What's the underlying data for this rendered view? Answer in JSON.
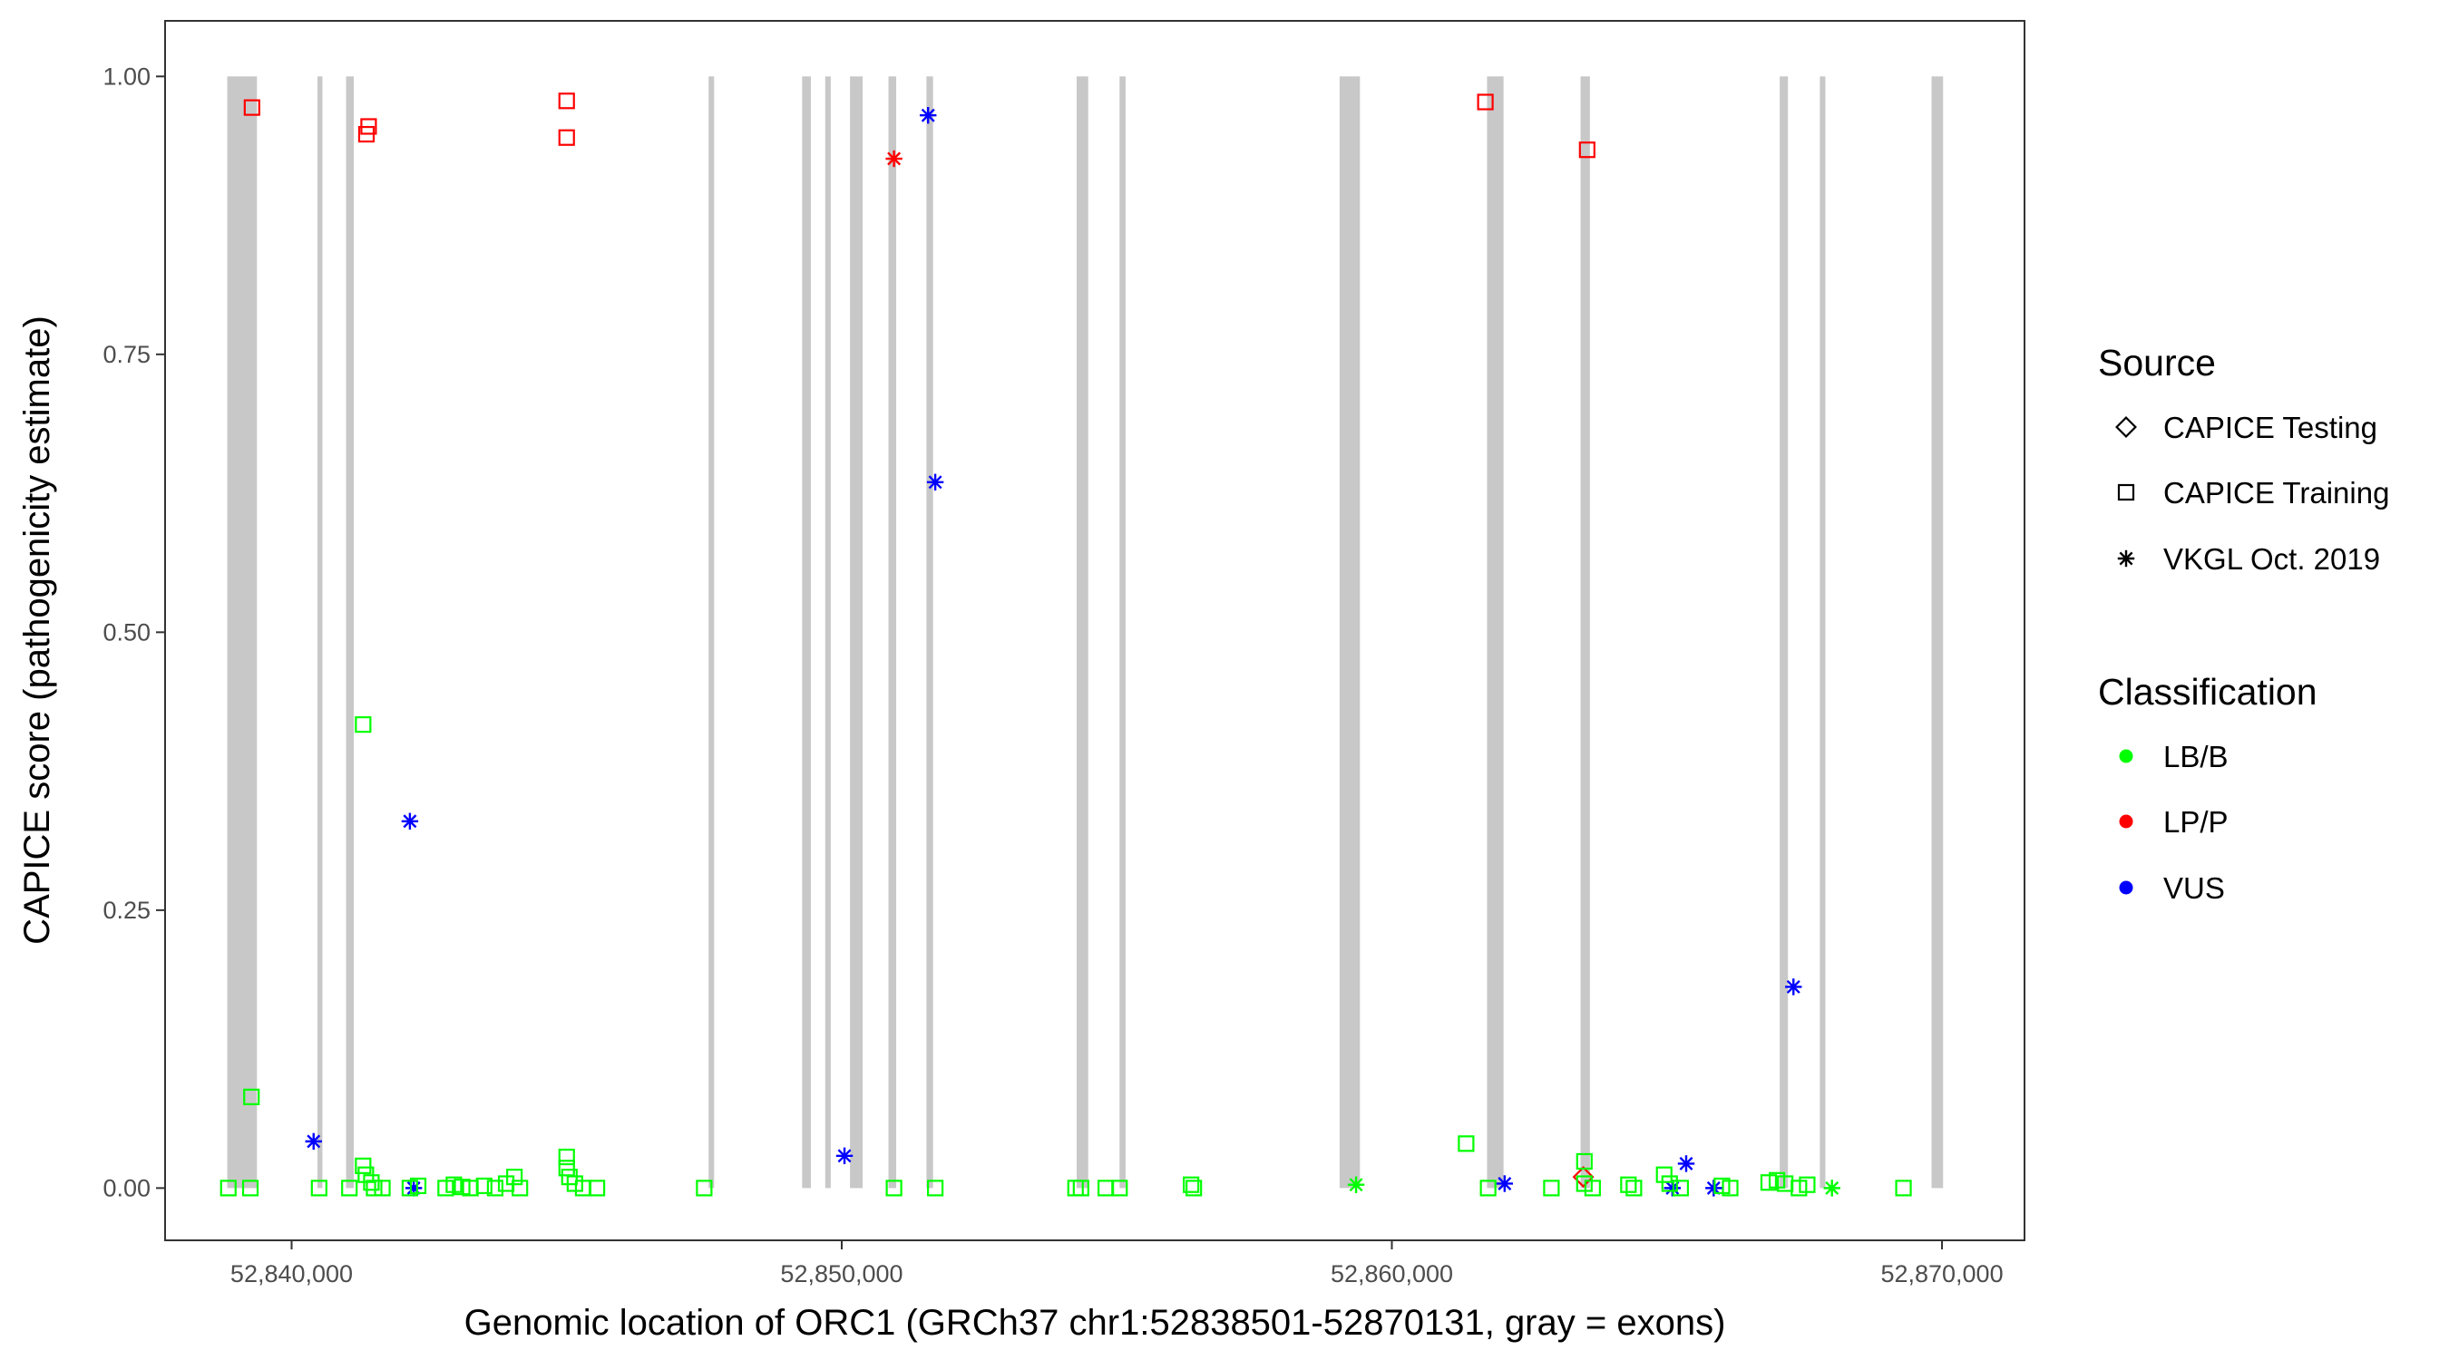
{
  "chart_data": {
    "type": "scatter",
    "title": "",
    "xlabel": "Genomic location of ORC1 (GRCh37 chr1:52838501-52870131, gray = exons)",
    "ylabel": "CAPICE score (pathogenicity estimate)",
    "xlim": [
      52837700,
      52871500
    ],
    "ylim": [
      -0.047,
      1.05
    ],
    "x_ticks": [
      52840000,
      52850000,
      52860000,
      52870000
    ],
    "x_tick_labels": [
      "52,840,000",
      "52,850,000",
      "52,860,000",
      "52,870,000"
    ],
    "y_ticks": [
      0,
      0.25,
      0.5,
      0.75,
      1.0
    ],
    "y_tick_labels": [
      "0.00",
      "0.25",
      "0.50",
      "0.75",
      "1.00"
    ],
    "grid": false,
    "legend_position": "right",
    "colors": {
      "LB/B": "#00ff00",
      "LP/P": "#ff0000",
      "VUS": "#0000ff",
      "exon": "#c8c8c8"
    },
    "exons": [
      [
        52838830,
        52839370
      ],
      [
        52840470,
        52840560
      ],
      [
        52840990,
        52841130
      ],
      [
        52847580,
        52847680
      ],
      [
        52849280,
        52849440
      ],
      [
        52849700,
        52849800
      ],
      [
        52850150,
        52850380
      ],
      [
        52850850,
        52850990
      ],
      [
        52851540,
        52851660
      ],
      [
        52854270,
        52854480
      ],
      [
        52855050,
        52855160
      ],
      [
        52859050,
        52859420
      ],
      [
        52861730,
        52862030
      ],
      [
        52863430,
        52863600
      ],
      [
        52867050,
        52867200
      ],
      [
        52867780,
        52867880
      ],
      [
        52869810,
        52870020
      ]
    ],
    "legends": {
      "source": {
        "title": "Source",
        "entries": [
          "CAPICE Testing",
          "CAPICE Training",
          "VKGL Oct. 2019"
        ]
      },
      "classification": {
        "title": "Classification",
        "entries": [
          "LB/B",
          "LP/P",
          "VUS"
        ]
      }
    },
    "series": [
      {
        "source": "CAPICE Training",
        "classification": "LP/P",
        "marker": "square",
        "points": [
          [
            52839280,
            0.972
          ],
          [
            52841360,
            0.948
          ],
          [
            52841400,
            0.955
          ],
          [
            52845000,
            0.978
          ],
          [
            52845000,
            0.945
          ],
          [
            52861700,
            0.977
          ],
          [
            52863550,
            0.934
          ]
        ]
      },
      {
        "source": "VKGL Oct. 2019",
        "classification": "LP/P",
        "marker": "asterisk",
        "points": [
          [
            52850950,
            0.926
          ]
        ]
      },
      {
        "source": "CAPICE Testing",
        "classification": "LP/P",
        "marker": "diamond",
        "points": [
          [
            52863480,
            0.01
          ]
        ]
      },
      {
        "source": "VKGL Oct. 2019",
        "classification": "VUS",
        "marker": "asterisk",
        "points": [
          [
            52851570,
            0.965
          ],
          [
            52851700,
            0.635
          ],
          [
            52842150,
            0.33
          ],
          [
            52840400,
            0.042
          ],
          [
            52850050,
            0.029
          ],
          [
            52867300,
            0.181
          ],
          [
            52842220,
            0.0
          ],
          [
            52862050,
            0.004
          ],
          [
            52865350,
            0.022
          ],
          [
            52865100,
            0.0
          ],
          [
            52865850,
            0.0
          ]
        ]
      },
      {
        "source": "VKGL Oct. 2019",
        "classification": "LB/B",
        "marker": "asterisk",
        "points": [
          [
            52859350,
            0.003
          ],
          [
            52868000,
            0.0
          ]
        ]
      },
      {
        "source": "CAPICE Training",
        "classification": "LB/B",
        "marker": "square",
        "points": [
          [
            52841300,
            0.417
          ],
          [
            52839270,
            0.082
          ],
          [
            52861350,
            0.04
          ],
          [
            52863500,
            0.024
          ],
          [
            52838850,
            0.0
          ],
          [
            52839250,
            0.0
          ],
          [
            52840500,
            0.0
          ],
          [
            52841050,
            0.0
          ],
          [
            52841300,
            0.02
          ],
          [
            52841350,
            0.012
          ],
          [
            52841450,
            0.005
          ],
          [
            52841500,
            0.0
          ],
          [
            52841650,
            0.0
          ],
          [
            52842150,
            0.0
          ],
          [
            52842300,
            0.002
          ],
          [
            52842800,
            0.0
          ],
          [
            52842950,
            0.003
          ],
          [
            52843100,
            0.001
          ],
          [
            52843250,
            0.0
          ],
          [
            52843500,
            0.002
          ],
          [
            52843700,
            0.0
          ],
          [
            52843900,
            0.004
          ],
          [
            52844050,
            0.01
          ],
          [
            52844150,
            0.0
          ],
          [
            52845000,
            0.028
          ],
          [
            52845000,
            0.018
          ],
          [
            52845050,
            0.01
          ],
          [
            52845150,
            0.004
          ],
          [
            52845300,
            0.0
          ],
          [
            52845550,
            0.0
          ],
          [
            52847500,
            0.0
          ],
          [
            52850950,
            0.0
          ],
          [
            52851700,
            0.0
          ],
          [
            52854250,
            0.0
          ],
          [
            52854350,
            0.0
          ],
          [
            52854800,
            0.0
          ],
          [
            52855050,
            0.0
          ],
          [
            52856350,
            0.003
          ],
          [
            52856400,
            0.0
          ],
          [
            52861750,
            0.0
          ],
          [
            52862900,
            0.0
          ],
          [
            52863500,
            0.004
          ],
          [
            52863650,
            0.0
          ],
          [
            52864300,
            0.003
          ],
          [
            52864400,
            0.0
          ],
          [
            52864950,
            0.012
          ],
          [
            52865050,
            0.004
          ],
          [
            52865250,
            0.0
          ],
          [
            52866000,
            0.002
          ],
          [
            52866150,
            0.0
          ],
          [
            52866850,
            0.005
          ],
          [
            52867000,
            0.007
          ],
          [
            52867150,
            0.004
          ],
          [
            52867400,
            0.0
          ],
          [
            52867550,
            0.003
          ],
          [
            52869300,
            0.0
          ]
        ]
      }
    ]
  }
}
